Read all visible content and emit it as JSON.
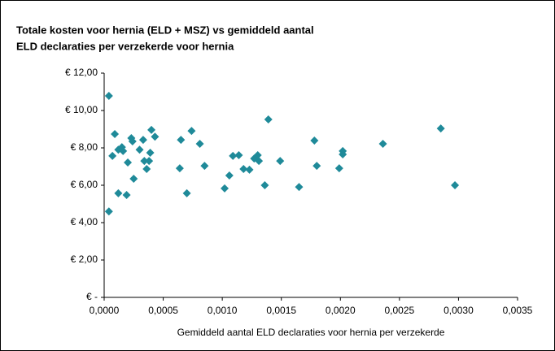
{
  "chart_data": {
    "type": "scatter",
    "title": [
      "Totale kosten voor hernia (ELD + MSZ) vs gemiddeld aantal",
      "ELD declaraties per verzekerde voor hernia"
    ],
    "x_label": "Gemiddeld aantal ELD declaraties voor hernia per verzekerde",
    "color": "#1f8a99",
    "x": [
      4e-05,
      4e-05,
      7e-05,
      9e-05,
      0.00012,
      0.00012,
      0.00015,
      0.00016,
      0.00019,
      0.0002,
      0.00023,
      0.00024,
      0.00025,
      0.0003,
      0.00033,
      0.00034,
      0.00036,
      0.00038,
      0.00039,
      0.0004,
      0.00043,
      0.00064,
      0.00065,
      0.0007,
      0.00074,
      0.00081,
      0.00085,
      0.00102,
      0.00106,
      0.00109,
      0.00114,
      0.00118,
      0.00123,
      0.00127,
      0.0013,
      0.00131,
      0.00136,
      0.00139,
      0.00149,
      0.00165,
      0.00178,
      0.0018,
      0.00199,
      0.00202,
      0.00202,
      0.00236,
      0.00285,
      0.00297
    ],
    "values": [
      10.78,
      4.6,
      7.57,
      8.74,
      5.57,
      7.9,
      8.04,
      7.83,
      5.48,
      7.22,
      8.52,
      8.35,
      6.35,
      7.9,
      8.43,
      7.3,
      6.87,
      7.3,
      7.74,
      8.96,
      8.6,
      6.91,
      8.43,
      5.57,
      8.91,
      8.22,
      7.04,
      5.83,
      6.52,
      7.57,
      7.61,
      6.87,
      6.83,
      7.43,
      7.61,
      7.3,
      6.0,
      9.52,
      7.3,
      5.91,
      8.39,
      7.04,
      6.91,
      7.83,
      7.65,
      8.22,
      9.04,
      6.0
    ],
    "xlim": [
      0,
      0.0035
    ],
    "xticks": [
      {
        "value": 0,
        "label": "0,0000"
      },
      {
        "value": 0.0005,
        "label": "0,0005"
      },
      {
        "value": 0.001,
        "label": "0,0010"
      },
      {
        "value": 0.0015,
        "label": "0,0015"
      },
      {
        "value": 0.002,
        "label": "0,0020"
      },
      {
        "value": 0.0025,
        "label": "0,0025"
      },
      {
        "value": 0.003,
        "label": "0,0030"
      },
      {
        "value": 0.0035,
        "label": "0,0035"
      }
    ],
    "ylim": [
      0,
      12
    ],
    "yticks": [
      {
        "value": 0,
        "label": "€ -"
      },
      {
        "value": 2,
        "label": "€ 2,00"
      },
      {
        "value": 4,
        "label": "€ 4,00"
      },
      {
        "value": 6,
        "label": "€ 6,00"
      },
      {
        "value": 8,
        "label": "€ 8,00"
      },
      {
        "value": 10,
        "label": "€ 10,00"
      },
      {
        "value": 12,
        "label": "€ 12,00"
      }
    ]
  }
}
